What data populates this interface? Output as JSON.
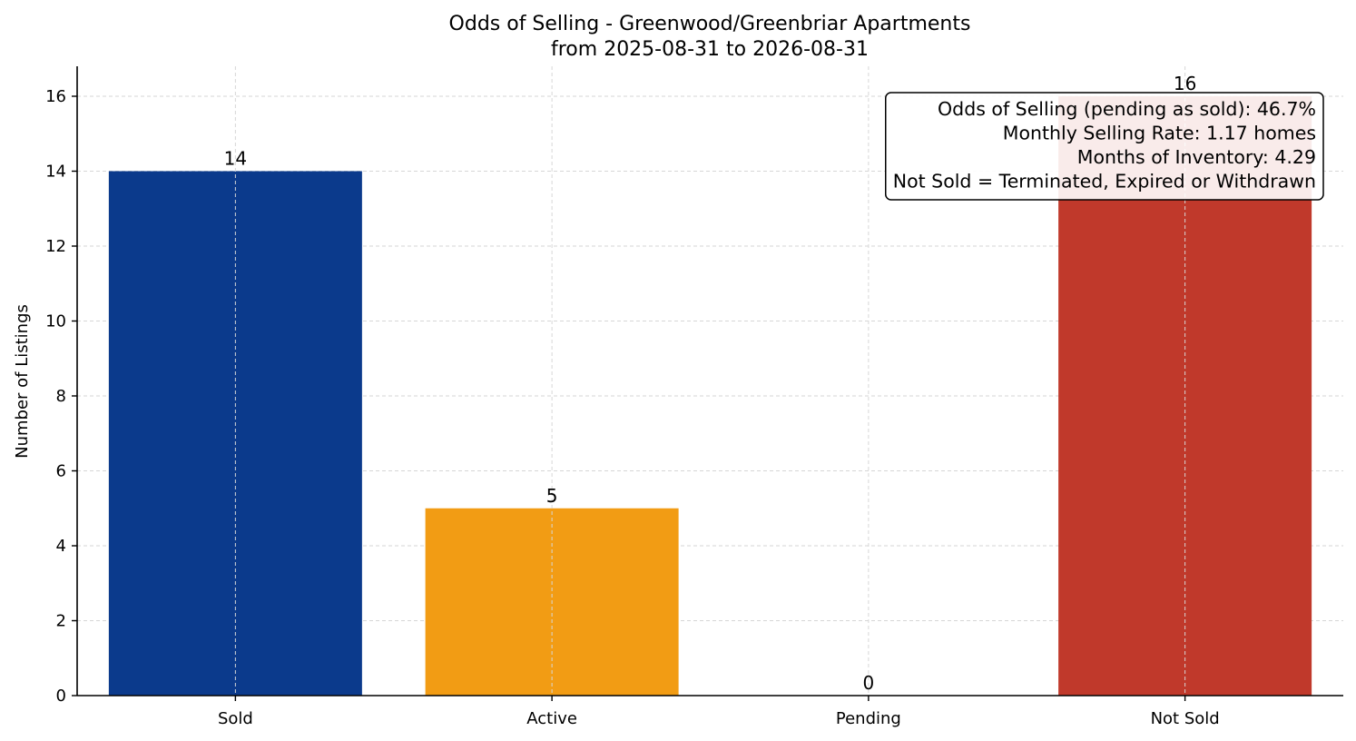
{
  "chart_data": {
    "type": "bar",
    "title": [
      "Odds of Selling - Greenwood/Greenbriar Apartments",
      "from 2025-08-31 to 2026-08-31"
    ],
    "xlabel": "",
    "ylabel": "Number of Listings",
    "categories": [
      "Sold",
      "Active",
      "Pending",
      "Not Sold"
    ],
    "values": [
      14,
      5,
      0,
      16
    ],
    "colors": [
      "#0b3a8c",
      "#f29c14",
      "#2e8b57",
      "#c0392b"
    ],
    "ylim": [
      0,
      16.8
    ],
    "yticks": [
      0,
      2,
      4,
      6,
      8,
      10,
      12,
      14,
      16
    ],
    "grid": true,
    "annotation": {
      "lines": [
        "Odds of Selling (pending as sold): 46.7%",
        "Monthly Selling Rate: 1.17 homes",
        "Months of Inventory: 4.29",
        "Not Sold = Terminated, Expired or Withdrawn"
      ],
      "placement": "top-right"
    }
  }
}
